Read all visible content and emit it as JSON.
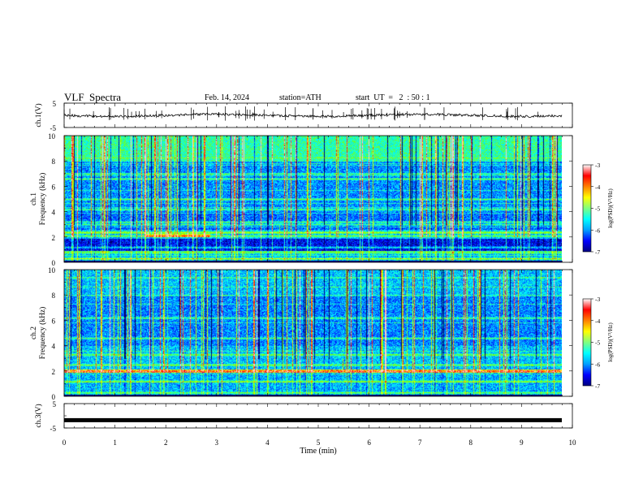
{
  "header": {
    "title": "VLF  Spectra",
    "date": "Feb. 14, 2024",
    "station": "station=ATH",
    "start_ut": "start  UT  =   2  : 50 : 1"
  },
  "chart_data": [
    {
      "type": "line",
      "ylabel": "ch.1(V)",
      "ylim": [
        -5,
        5
      ],
      "yticks": [
        "5",
        "-5"
      ],
      "xlim": [
        0,
        10
      ],
      "series": [
        {
          "approx_baseline": 0,
          "noise_amplitude": 0.3
        }
      ],
      "grid": false
    },
    {
      "type": "heatmap",
      "ylabel": "ch.1\nFrequency  (kHz)",
      "ylim": [
        0,
        10
      ],
      "yticks": [
        "0",
        "2",
        "4",
        "6",
        "8",
        "10"
      ],
      "xlim": [
        0,
        9.8
      ],
      "colorbar": {
        "label": "log(PSD)(V²/Hz)",
        "range": [
          -7,
          -3
        ],
        "ticks": [
          "-3",
          "-4",
          "-5",
          "-6",
          "-7"
        ]
      },
      "bands_khz": [
        0.3,
        0.8,
        1.2,
        2.1,
        2.4,
        3.0,
        3.2,
        4.2,
        5.0,
        6.6,
        7.0
      ]
    },
    {
      "type": "heatmap",
      "ylabel": "ch.2\nFrequency  (kHz)",
      "ylim": [
        0,
        10
      ],
      "yticks": [
        "0",
        "2",
        "4",
        "6",
        "8",
        "10"
      ],
      "xlim": [
        0,
        9.8
      ],
      "colorbar": {
        "label": "log(PSD)(V²/Hz)",
        "range": [
          -7,
          -3
        ],
        "ticks": [
          "-3",
          "-4",
          "-5",
          "-6",
          "-7"
        ]
      },
      "bands_khz": [
        0.3,
        1.2,
        2.0,
        2.5,
        3.3,
        4.6,
        6.2
      ]
    },
    {
      "type": "line",
      "ylabel": "ch.3(V)",
      "ylim": [
        -5,
        5
      ],
      "yticks": [
        "5",
        "-5"
      ],
      "xlim": [
        0,
        10
      ],
      "xlabel": "Time  (min)",
      "xticks": [
        "0",
        "1",
        "2",
        "3",
        "4",
        "5",
        "6",
        "7",
        "8",
        "9",
        "10"
      ],
      "series": [
        {
          "approx_baseline": -1.8
        }
      ],
      "grid": false
    }
  ],
  "colors": {
    "jet": [
      "#000080",
      "#0000ff",
      "#00a0ff",
      "#00ffff",
      "#80ff80",
      "#ffff00",
      "#ff8000",
      "#ff0000",
      "#ffffff"
    ]
  }
}
